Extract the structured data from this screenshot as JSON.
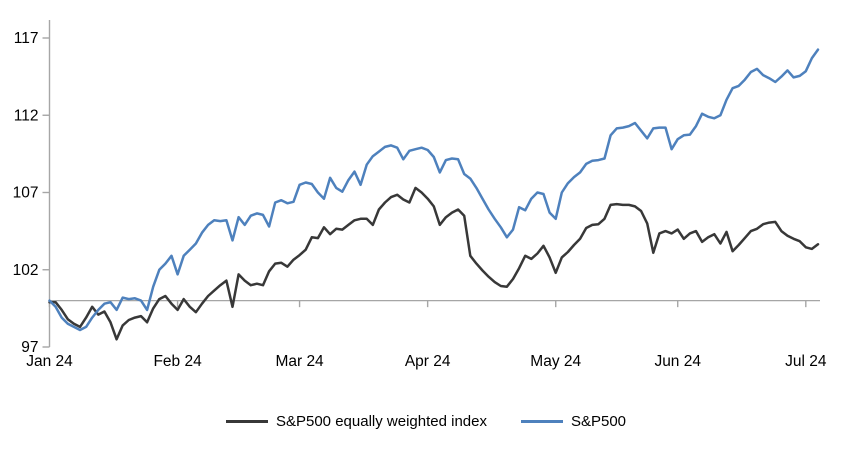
{
  "chart_data": {
    "type": "line",
    "title": "",
    "x_axis": {
      "labels": [
        "Jan 24",
        "Feb 24",
        "Mar 24",
        "Apr 24",
        "May 24",
        "Jun 24",
        "Jul 24"
      ],
      "tick_day_indices": [
        0,
        21,
        41,
        62,
        83,
        103,
        124
      ],
      "total_days": 126
    },
    "y_axis": {
      "ticks": [
        97,
        102,
        107,
        112,
        117
      ],
      "range": [
        97,
        117
      ],
      "baseline_value": 100
    },
    "legend": [
      {
        "name": "S&P500 equally weighted index",
        "color": "#383838"
      },
      {
        "name": "S&P500",
        "color": "#4e81bd"
      }
    ],
    "series": [
      {
        "name": "S&P500 equally weighted index",
        "color": "#383838",
        "values": [
          99.9,
          99.9,
          99.4,
          98.8,
          98.5,
          98.3,
          98.9,
          99.6,
          99.1,
          99.3,
          98.6,
          97.5,
          98.4,
          98.75,
          98.9,
          99.0,
          98.6,
          99.5,
          100.1,
          100.3,
          99.8,
          99.4,
          100.1,
          99.6,
          99.25,
          99.8,
          100.3,
          100.65,
          101.0,
          101.3,
          99.6,
          101.7,
          101.3,
          101.0,
          101.1,
          101.0,
          101.9,
          102.4,
          102.45,
          102.2,
          102.65,
          102.95,
          103.3,
          104.1,
          104.05,
          104.75,
          104.3,
          104.65,
          104.6,
          104.9,
          105.2,
          105.3,
          105.3,
          104.9,
          105.9,
          106.35,
          106.7,
          106.85,
          106.55,
          106.35,
          107.3,
          107.0,
          106.6,
          106.1,
          104.9,
          105.4,
          105.7,
          105.9,
          105.5,
          102.9,
          102.4,
          101.95,
          101.55,
          101.2,
          100.95,
          100.9,
          101.4,
          102.1,
          102.9,
          102.7,
          103.05,
          103.55,
          102.8,
          101.8,
          102.8,
          103.15,
          103.6,
          104.0,
          104.7,
          104.9,
          104.95,
          105.3,
          106.2,
          106.25,
          106.2,
          106.2,
          106.1,
          105.8,
          105.0,
          103.1,
          104.35,
          104.5,
          104.35,
          104.6,
          104.0,
          104.35,
          104.5,
          103.8,
          104.1,
          104.3,
          103.7,
          104.45,
          103.2,
          103.6,
          104.05,
          104.5,
          104.65,
          104.95,
          105.05,
          105.1,
          104.5,
          104.2,
          104.0,
          103.85,
          103.45,
          103.35,
          103.65
        ]
      },
      {
        "name": "S&P500",
        "color": "#4e81bd",
        "values": [
          100.0,
          99.6,
          98.9,
          98.5,
          98.3,
          98.1,
          98.3,
          98.9,
          99.4,
          99.8,
          99.9,
          99.4,
          100.2,
          100.1,
          100.15,
          100.0,
          99.4,
          100.9,
          102.0,
          102.4,
          102.9,
          101.7,
          102.9,
          103.3,
          103.7,
          104.4,
          104.9,
          105.2,
          105.15,
          105.2,
          103.9,
          105.4,
          104.9,
          105.5,
          105.65,
          105.55,
          104.8,
          106.35,
          106.5,
          106.3,
          106.4,
          107.5,
          107.65,
          107.55,
          107.0,
          106.6,
          107.95,
          107.3,
          107.05,
          107.8,
          108.35,
          107.5,
          108.8,
          109.35,
          109.65,
          109.95,
          110.05,
          109.9,
          109.15,
          109.7,
          109.8,
          109.9,
          109.75,
          109.3,
          108.3,
          109.1,
          109.2,
          109.15,
          108.2,
          107.9,
          107.3,
          106.6,
          105.9,
          105.3,
          104.75,
          104.1,
          104.6,
          106.05,
          105.85,
          106.6,
          107.0,
          106.9,
          105.7,
          105.3,
          107.0,
          107.6,
          108.0,
          108.3,
          108.85,
          109.05,
          109.1,
          109.2,
          110.7,
          111.15,
          111.2,
          111.3,
          111.5,
          111.0,
          110.5,
          111.15,
          111.2,
          111.2,
          109.8,
          110.45,
          110.7,
          110.75,
          111.3,
          112.1,
          111.9,
          111.8,
          112.0,
          113.0,
          113.75,
          113.9,
          114.3,
          114.8,
          115.0,
          114.6,
          114.4,
          114.15,
          114.5,
          114.9,
          114.45,
          114.55,
          114.85,
          115.7,
          116.25
        ]
      }
    ],
    "layout_hints": {
      "legend_position": "bottom-center",
      "grid": "off",
      "baseline_shown": true
    }
  },
  "colors": {
    "axis": "#a6a6a6",
    "text": "#000000",
    "background": "#ffffff"
  }
}
